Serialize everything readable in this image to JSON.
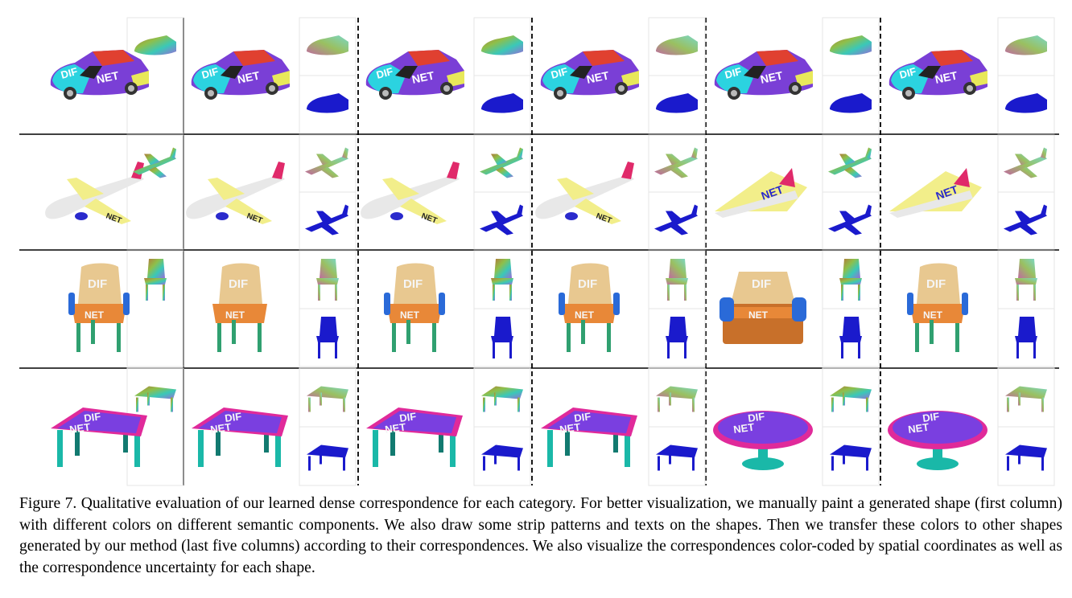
{
  "figure": {
    "categories": [
      "car",
      "airplane",
      "chair",
      "table"
    ],
    "painted_text": [
      "DIF",
      "NET"
    ],
    "colors": {
      "car_body": "#7a3fd6",
      "car_hood": "#2bd3e0",
      "car_roof": "#e04030",
      "car_trim": "#e8e85a",
      "plane_body": "#e8e8e8",
      "plane_wing": "#f2ee8a",
      "plane_tail": "#e02a6a",
      "plane_engine": "#2a2acc",
      "chair_back": "#e8c890",
      "chair_seat": "#e88838",
      "chair_arm": "#2a6ad8",
      "chair_leg": "#30a070",
      "table_top": "#7a3fe0",
      "table_rim": "#e02a9a",
      "table_leg": "#1ab8a8",
      "uncertainty_blue": "#1a1acc"
    },
    "icons": [
      "dif-net-car",
      "dif-net-airplane",
      "dif-net-chair",
      "dif-net-table",
      "rainbow-coord-shape",
      "uncertainty-shape"
    ]
  },
  "caption": {
    "label": "Figure 7.",
    "text": " Qualitative evaluation of our learned dense correspondence for each category. For better visualization, we manually paint a generated shape (first column) with different colors on different semantic components. We also draw some strip patterns and texts on the shapes. Then we transfer these colors to other shapes generated by our method (last five columns) according to their correspondences. We also visualize the correspondences color-coded by spatial coordinates as well as the correspondence uncertainty for each shape."
  }
}
